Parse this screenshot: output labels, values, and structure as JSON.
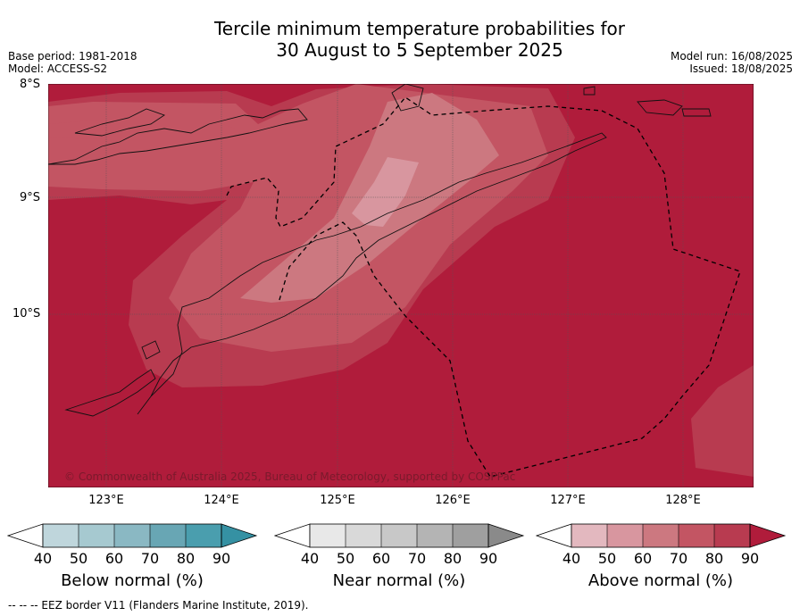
{
  "title_line1": "Tercile minimum temperature probabilities for",
  "title_line2": "30 August to 5 September 2025",
  "base_period": "Base period: 1981-2018",
  "model": "Model: ACCESS-S2",
  "model_run": "Model run: 16/08/2025",
  "issued": "Issued: 18/08/2025",
  "lat_labels": [
    "8°S",
    "9°S",
    "10°S"
  ],
  "lon_labels": [
    "123°E",
    "124°E",
    "125°E",
    "126°E",
    "127°E",
    "128°E"
  ],
  "copyright": "© Commonwealth of Australia 2025, Bureau of Meteorology, supported by COSPPac",
  "colorbars": [
    {
      "label": "Below normal (%)",
      "ticks": [
        "40",
        "50",
        "60",
        "70",
        "80",
        "90"
      ],
      "colors": [
        "#ffffff",
        "#bfd6dc",
        "#a6c9d0",
        "#8ab8c3",
        "#68a6b4",
        "#4a9eae",
        "#3591a3"
      ]
    },
    {
      "label": "Near normal (%)",
      "ticks": [
        "40",
        "50",
        "60",
        "70",
        "80",
        "90"
      ],
      "colors": [
        "#ffffff",
        "#e8e8e8",
        "#d9d9d9",
        "#c8c8c8",
        "#b4b4b4",
        "#9f9f9f",
        "#8a8a8a"
      ]
    },
    {
      "label": "Above normal (%)",
      "ticks": [
        "40",
        "50",
        "60",
        "70",
        "80",
        "90"
      ],
      "colors": [
        "#ffffff",
        "#e3b8bf",
        "#d8969f",
        "#cc7880",
        "#c35563",
        "#b83b50",
        "#b01c3b"
      ]
    }
  ],
  "footnote": "--  --  -- EEZ border V11 (Flanders Marine Institute, 2019).",
  "map_colors": {
    "c90": "#b01c3b",
    "c80": "#b83b50",
    "c70": "#c35563",
    "c60": "#cc7880",
    "c50": "#d8969f"
  }
}
